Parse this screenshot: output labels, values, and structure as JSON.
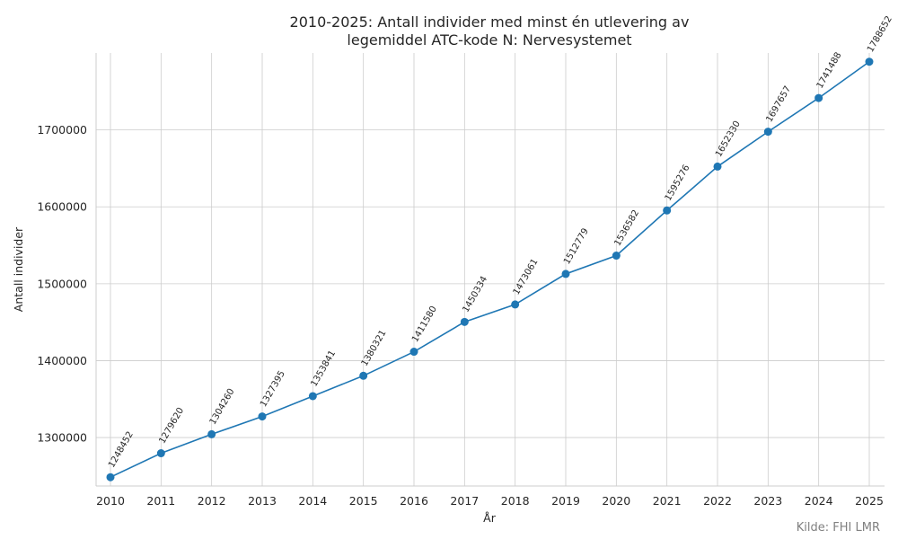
{
  "chart_data": {
    "type": "line",
    "title_line1": "2010-2025: Antall individer med minst én utlevering av",
    "title_line2": "legemiddel ATC-kode N: Nervesystemet",
    "xlabel": "År",
    "ylabel": "Antall individer",
    "x": [
      "2010",
      "2011",
      "2012",
      "2013",
      "2014",
      "2015",
      "2016",
      "2017",
      "2018",
      "2019",
      "2020",
      "2021",
      "2022",
      "2023",
      "2024",
      "2025"
    ],
    "values": [
      1248452,
      1279620,
      1304260,
      1327395,
      1353841,
      1380321,
      1411580,
      1450334,
      1473061,
      1512779,
      1536582,
      1595276,
      1652330,
      1697657,
      1741488,
      1788652
    ],
    "yticks": [
      1300000,
      1400000,
      1500000,
      1600000,
      1700000
    ],
    "ylim": [
      1237000,
      1800000
    ],
    "grid": true,
    "line_color": "#1f77b4",
    "source": "Kilde: FHI LMR"
  }
}
